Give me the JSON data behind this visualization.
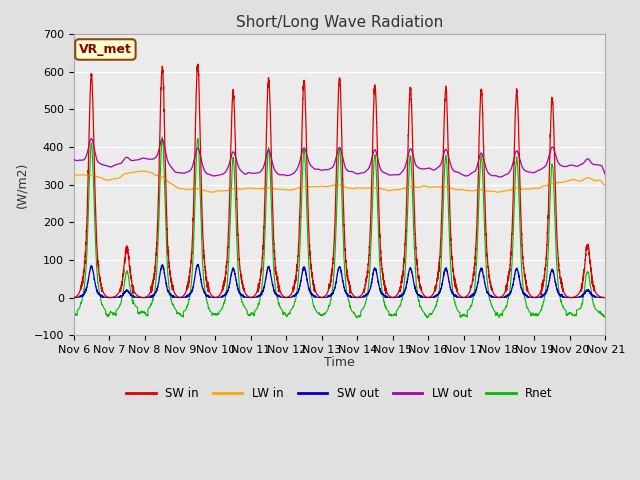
{
  "title": "Short/Long Wave Radiation",
  "ylabel": "(W/m2)",
  "xlabel": "Time",
  "ylim": [
    -100,
    700
  ],
  "n_days": 15,
  "background_color": "#e0e0e0",
  "plot_bg_color": "#ebebeb",
  "grid_color": "white",
  "station_label": "VR_met",
  "x_tick_labels": [
    "Nov 6",
    "Nov 7",
    "Nov 8",
    "Nov 9",
    "Nov 10",
    "Nov 11",
    "Nov 12",
    "Nov 13",
    "Nov 14",
    "Nov 15",
    "Nov 16",
    "Nov 17",
    "Nov 18",
    "Nov 19",
    "Nov 20",
    "Nov 21"
  ],
  "colors": {
    "SW_in": "#dd0000",
    "LW_in": "#ffa500",
    "SW_out": "#0000cc",
    "LW_out": "#aa00aa",
    "Rnet": "#00bb00"
  },
  "legend_labels": [
    "SW in",
    "LW in",
    "SW out",
    "LW out",
    "Rnet"
  ],
  "sw_peaks": [
    590,
    130,
    610,
    620,
    545,
    580,
    575,
    580,
    560,
    555,
    555,
    550,
    550,
    525,
    140
  ],
  "lw_in_base": [
    330,
    310,
    340,
    290,
    280,
    290,
    285,
    295,
    290,
    285,
    295,
    285,
    280,
    290,
    310
  ],
  "lw_out_base": [
    365,
    345,
    370,
    330,
    325,
    330,
    325,
    340,
    330,
    325,
    340,
    325,
    320,
    335,
    350
  ]
}
